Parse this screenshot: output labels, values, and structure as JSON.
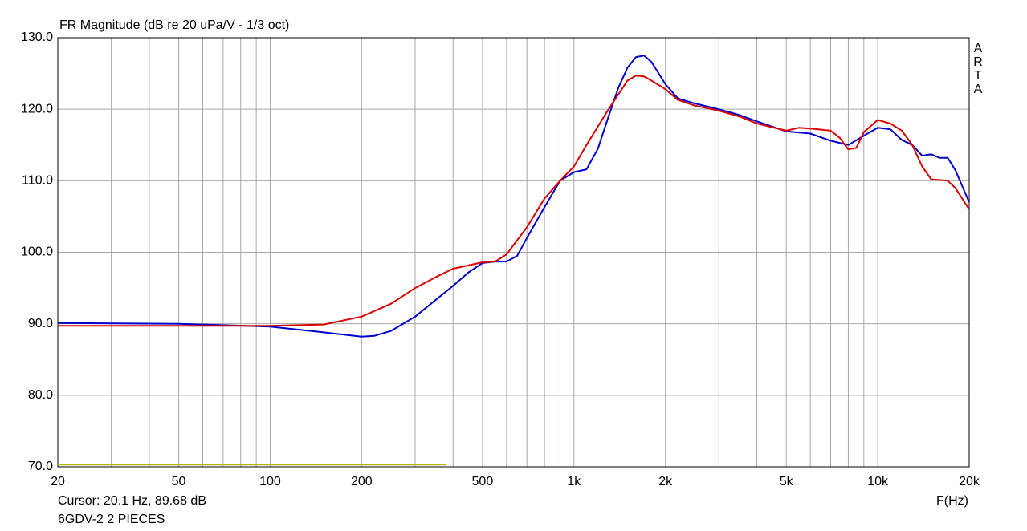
{
  "chart_data": {
    "type": "line",
    "title": "FR Magnitude (dB re 20 uPa/V - 1/3 oct)",
    "watermark": "ARTA",
    "x_label": "F(Hz)",
    "cursor": "Cursor: 20.1 Hz, 89.68 dB",
    "subtitle": "6GDV-2 2 PIECES",
    "xscale": "log",
    "grid": true,
    "xlim": [
      20,
      20000
    ],
    "ylim": [
      70,
      130
    ],
    "xticks": [
      20,
      50,
      100,
      200,
      500,
      {
        "value": 1000,
        "label": "1k"
      },
      {
        "value": 2000,
        "label": "2k"
      },
      {
        "value": 5000,
        "label": "5k"
      },
      {
        "value": 10000,
        "label": "10k"
      },
      {
        "value": 20000,
        "label": "20k"
      }
    ],
    "xminor": [
      30,
      40,
      60,
      70,
      80,
      90,
      300,
      400,
      600,
      700,
      800,
      900,
      3000,
      4000,
      6000,
      7000,
      8000,
      9000
    ],
    "yticks": [
      {
        "value": 70,
        "label": "70.0"
      },
      {
        "value": 80,
        "label": "80.0"
      },
      {
        "value": 90,
        "label": "90.0"
      },
      {
        "value": 100,
        "label": "100.0"
      },
      {
        "value": 110,
        "label": "110.0"
      },
      {
        "value": 120,
        "label": "120.0"
      },
      {
        "value": 130,
        "label": "130.0"
      }
    ],
    "series": [
      {
        "color": "#0000cc",
        "x": [
          20,
          50,
          100,
          150,
          200,
          220,
          250,
          300,
          350,
          400,
          450,
          500,
          550,
          600,
          650,
          700,
          800,
          900,
          1000,
          1100,
          1200,
          1300,
          1400,
          1500,
          1600,
          1700,
          1800,
          2000,
          2200,
          2500,
          3000,
          3500,
          4000,
          5000,
          6000,
          7000,
          8000,
          9000,
          10000,
          11000,
          12000,
          13000,
          14000,
          15000,
          16000,
          17000,
          18000,
          20000
        ],
        "values": [
          90.1,
          90.0,
          89.6,
          88.8,
          88.2,
          88.3,
          89.0,
          91.0,
          93.3,
          95.3,
          97.2,
          98.5,
          98.7,
          98.7,
          99.5,
          102.0,
          106.3,
          110.0,
          111.2,
          111.6,
          114.5,
          119.0,
          123.0,
          125.8,
          127.3,
          127.5,
          126.6,
          123.5,
          121.5,
          120.8,
          120.0,
          119.2,
          118.3,
          116.9,
          116.6,
          115.6,
          115.0,
          116.3,
          117.4,
          117.2,
          115.7,
          115.0,
          113.5,
          113.7,
          113.2,
          113.2,
          111.5,
          107.0
        ]
      },
      {
        "color": "#dd0000",
        "x": [
          20,
          100,
          150,
          200,
          250,
          300,
          350,
          400,
          500,
          550,
          600,
          700,
          800,
          900,
          1000,
          1100,
          1300,
          1500,
          1600,
          1700,
          1800,
          2000,
          2200,
          2500,
          3000,
          3500,
          4000,
          5000,
          5500,
          6000,
          7000,
          7500,
          8000,
          8500,
          9000,
          10000,
          11000,
          12000,
          13000,
          14000,
          15000,
          17000,
          18000,
          20000
        ],
        "values": [
          89.7,
          89.7,
          89.9,
          91.0,
          92.8,
          95.0,
          96.5,
          97.7,
          98.6,
          98.7,
          99.7,
          103.5,
          107.5,
          110.0,
          112.0,
          115.0,
          120.0,
          124.0,
          124.7,
          124.6,
          124.0,
          122.8,
          121.3,
          120.5,
          119.8,
          119.0,
          118.0,
          117.0,
          117.4,
          117.3,
          117.0,
          116.0,
          114.4,
          114.6,
          116.8,
          118.5,
          118.0,
          117.0,
          115.0,
          112.0,
          110.2,
          110.0,
          109.0,
          106.0
        ]
      },
      {
        "color": "#b0b800",
        "x": [
          20,
          380
        ],
        "values": [
          70.3,
          70.3
        ]
      }
    ]
  }
}
